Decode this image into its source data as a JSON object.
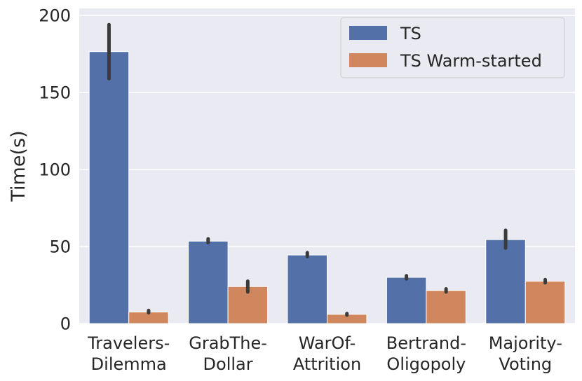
{
  "chart_data": {
    "type": "bar",
    "categories": [
      [
        "Travelers-",
        "Dilemma"
      ],
      [
        "GrabThe-",
        "Dollar"
      ],
      [
        "WarOf-",
        "Attrition"
      ],
      [
        "Bertrand-",
        "Oligopoly"
      ],
      [
        "Majority-",
        "Voting"
      ]
    ],
    "series": [
      {
        "name": "TS",
        "color": "#5470a8",
        "values": [
          176.5,
          53.5,
          44.5,
          30,
          54.5
        ],
        "error": [
          [
            159,
            194
          ],
          [
            52.5,
            55
          ],
          [
            43.5,
            46
          ],
          [
            29,
            31
          ],
          [
            49,
            60.5
          ]
        ]
      },
      {
        "name": "TS Warm-started",
        "color": "#d1875e",
        "values": [
          7.5,
          24,
          6,
          21.5,
          27.5
        ],
        "error": [
          [
            7,
            8.5
          ],
          [
            20.5,
            27.5
          ],
          [
            5.5,
            6.5
          ],
          [
            20.5,
            22.5
          ],
          [
            26.5,
            28.5
          ]
        ]
      }
    ],
    "title": "",
    "xlabel": "",
    "ylabel": "Time(s)",
    "ylim": [
      0,
      200
    ],
    "yticks": [
      0,
      50,
      100,
      150,
      200
    ],
    "grid": true,
    "legend_position": "top-right",
    "background": "#eaeaf2"
  }
}
